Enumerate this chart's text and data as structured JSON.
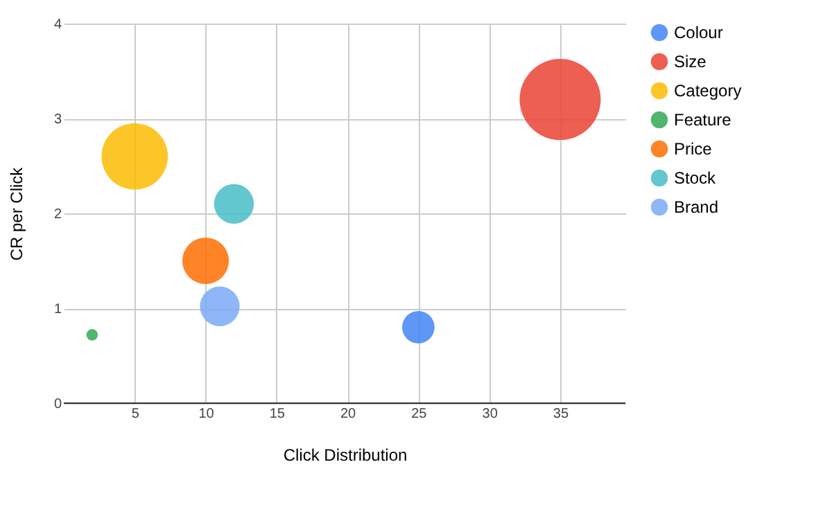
{
  "chart_data": {
    "type": "bubble",
    "xlabel": "Click Distribution",
    "ylabel": "CR per Click",
    "xlim": [
      0,
      39.6
    ],
    "xticks": [
      5,
      10,
      15,
      20,
      25,
      30,
      35
    ],
    "ylim": [
      0,
      4
    ],
    "yticks": [
      0,
      1,
      2,
      3,
      4
    ],
    "grid": true,
    "legend": "right",
    "series": [
      {
        "name": "Colour",
        "color": "#4285f4",
        "x": [
          25
        ],
        "values": [
          0.8
        ],
        "sizes": [
          0.16
        ]
      },
      {
        "name": "Size",
        "color": "#ea4335",
        "x": [
          35
        ],
        "values": [
          3.2
        ],
        "sizes": [
          1
        ]
      },
      {
        "name": "Category",
        "color": "#fbbc04",
        "x": [
          5
        ],
        "values": [
          2.6
        ],
        "sizes": [
          0.67
        ]
      },
      {
        "name": "Feature",
        "color": "#34a853",
        "x": [
          2
        ],
        "values": [
          0.72
        ],
        "sizes": [
          0.02
        ]
      },
      {
        "name": "Price",
        "color": "#ff6d01",
        "x": [
          10
        ],
        "values": [
          1.5
        ],
        "sizes": [
          0.33
        ]
      },
      {
        "name": "Stock",
        "color": "#46bdc6",
        "x": [
          12
        ],
        "values": [
          2.1
        ],
        "sizes": [
          0.24
        ]
      },
      {
        "name": "Brand",
        "color": "#7baaf7",
        "x": [
          11
        ],
        "values": [
          1.02
        ],
        "sizes": [
          0.24
        ]
      }
    ]
  }
}
